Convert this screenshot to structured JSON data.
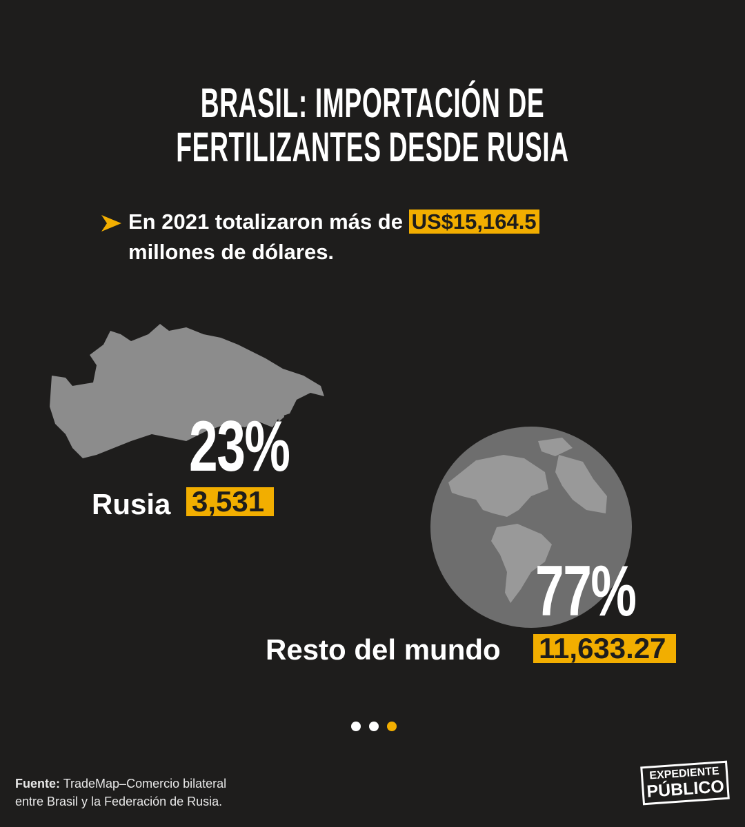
{
  "title": [
    "BRASIL: IMPORTACIÓN DE",
    "FERTILIZANTES DESDE RUSIA"
  ],
  "intro": {
    "text_before": "En 2021 totalizaron más de",
    "highlight": "US$15,164.5",
    "text_after": "millones de dólares."
  },
  "items": [
    {
      "percent": "23%",
      "label": "Rusia",
      "value": "3,531"
    },
    {
      "percent": "77%",
      "label": "Resto del mundo",
      "value": "11,633.27"
    }
  ],
  "source": {
    "label": "Fuente:",
    "text": "TradeMap–Comercio bilateral entre Brasil y la Federación de Rusia."
  },
  "logo": [
    "EXPEDIENTE",
    "PÚBLICO"
  ]
}
